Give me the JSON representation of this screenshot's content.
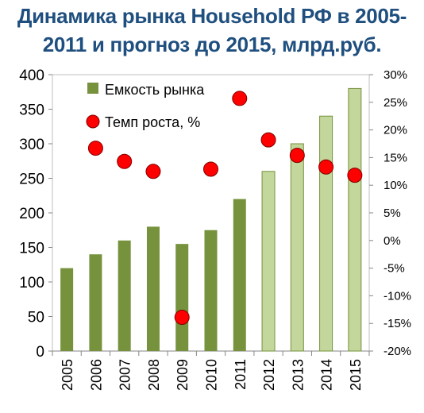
{
  "title_line1": "Динамика рынка Household РФ в 2005-",
  "title_line2": "2011 и прогноз до 2015, млрд.руб.",
  "chart_data": {
    "type": "bar",
    "title": "Динамика рынка Household РФ в 2005-2011 и прогноз до 2015, млрд.руб.",
    "categories": [
      "2005",
      "2006",
      "2007",
      "2008",
      "2009",
      "2010",
      "2011",
      "2012",
      "2013",
      "2014",
      "2015"
    ],
    "series": [
      {
        "name": "Емкость рынка",
        "type": "bar",
        "axis": "left",
        "values": [
          120,
          140,
          160,
          180,
          155,
          175,
          220,
          260,
          300,
          340,
          380
        ],
        "forecast_from_index": 7,
        "colors": {
          "actual": "#76923c",
          "forecast": "#c3d69b",
          "forecast_border": "#76923c"
        }
      },
      {
        "name": "Темп роста, %",
        "type": "scatter",
        "axis": "right",
        "values": [
          null,
          16.7,
          14.3,
          12.5,
          -13.9,
          12.9,
          25.7,
          18.2,
          15.4,
          13.3,
          11.8
        ],
        "colors": {
          "fill": "#ff0000",
          "stroke": "#7f0000"
        }
      }
    ],
    "y_left": {
      "ylim": [
        0,
        400
      ],
      "ticks": [
        "0",
        "50",
        "100",
        "150",
        "200",
        "250",
        "300",
        "350",
        "400"
      ]
    },
    "y_right": {
      "ylim": [
        -20,
        30
      ],
      "ticks": [
        "-20%",
        "-15%",
        "-10%",
        "-5%",
        "0%",
        "5%",
        "10%",
        "15%",
        "20%",
        "25%",
        "30%"
      ]
    },
    "legend_placement": "top-left"
  }
}
